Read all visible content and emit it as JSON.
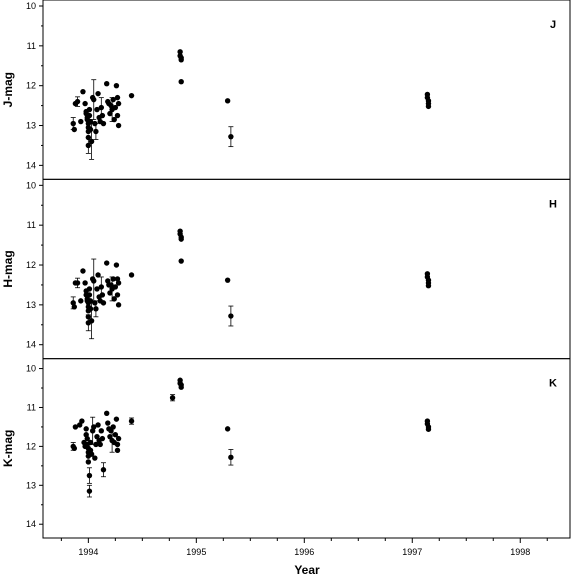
{
  "chart_data": {
    "type": "scatter",
    "xlabel": "Year",
    "x_ticks": [
      "1994",
      "1995",
      "1996",
      "1997",
      "1998"
    ],
    "xlim": [
      1993.58,
      1998.47
    ],
    "panels": [
      {
        "name": "J",
        "ylabel": "J-mag",
        "tag": "J",
        "ylim": [
          10,
          14.2
        ],
        "inverted": true,
        "y_ticks": [
          "10",
          "11",
          "12",
          "13",
          "14"
        ],
        "points": [
          [
            1993.86,
            12.95
          ],
          [
            1993.87,
            13.1
          ],
          [
            1993.88,
            12.45
          ],
          [
            1993.9,
            12.4
          ],
          [
            1993.93,
            12.9
          ],
          [
            1993.95,
            12.15
          ],
          [
            1993.97,
            12.45
          ],
          [
            1993.98,
            12.65
          ],
          [
            1993.98,
            12.7
          ],
          [
            1993.99,
            12.8
          ],
          [
            1993.99,
            12.85
          ],
          [
            1994.0,
            12.95
          ],
          [
            1994.0,
            13.05
          ],
          [
            1994.0,
            13.15
          ],
          [
            1994.0,
            13.3
          ],
          [
            1994.0,
            13.5
          ],
          [
            1994.01,
            12.6
          ],
          [
            1994.01,
            12.75
          ],
          [
            1994.02,
            12.9
          ],
          [
            1994.02,
            13.1
          ],
          [
            1994.03,
            13.4
          ],
          [
            1994.04,
            12.3
          ],
          [
            1994.05,
            12.35
          ],
          [
            1994.06,
            12.95
          ],
          [
            1994.07,
            13.15
          ],
          [
            1994.08,
            12.6
          ],
          [
            1994.09,
            12.2
          ],
          [
            1994.1,
            12.8
          ],
          [
            1994.11,
            12.9
          ],
          [
            1994.12,
            12.55
          ],
          [
            1994.13,
            12.75
          ],
          [
            1994.14,
            12.95
          ],
          [
            1994.17,
            11.95
          ],
          [
            1994.18,
            12.4
          ],
          [
            1994.19,
            12.45
          ],
          [
            1994.2,
            12.7
          ],
          [
            1994.21,
            12.5
          ],
          [
            1994.22,
            12.6
          ],
          [
            1994.23,
            12.35
          ],
          [
            1994.24,
            12.85
          ],
          [
            1994.25,
            12.55
          ],
          [
            1994.26,
            12.0
          ],
          [
            1994.27,
            12.3
          ],
          [
            1994.27,
            12.75
          ],
          [
            1994.28,
            13.0
          ],
          [
            1994.28,
            12.45
          ],
          [
            1994.4,
            12.25
          ],
          [
            1994.85,
            11.15
          ],
          [
            1994.85,
            11.25
          ],
          [
            1994.86,
            11.3
          ],
          [
            1994.86,
            11.35
          ],
          [
            1994.86,
            11.9
          ],
          [
            1995.29,
            12.38
          ],
          [
            1995.32,
            13.28
          ],
          [
            1997.14,
            12.22
          ],
          [
            1997.14,
            12.3
          ],
          [
            1997.15,
            12.38
          ],
          [
            1997.15,
            12.45
          ],
          [
            1997.15,
            12.52
          ]
        ],
        "errorbars": [
          [
            1993.86,
            12.95,
            0.15
          ],
          [
            1993.9,
            12.4,
            0.12
          ],
          [
            1994.0,
            13.5,
            0.2
          ],
          [
            1994.03,
            13.4,
            0.45
          ],
          [
            1994.05,
            12.35,
            0.5
          ],
          [
            1994.07,
            13.15,
            0.2
          ],
          [
            1994.12,
            12.55,
            0.25
          ],
          [
            1994.22,
            12.6,
            0.3
          ],
          [
            1995.32,
            13.28,
            0.25
          ]
        ]
      },
      {
        "name": "H",
        "ylabel": "H-mag",
        "tag": "H",
        "ylim": [
          10,
          14.2
        ],
        "inverted": true,
        "y_ticks": [
          "10",
          "11",
          "12",
          "13",
          "14"
        ],
        "points": [
          [
            1993.86,
            12.95
          ],
          [
            1993.87,
            13.05
          ],
          [
            1993.88,
            12.45
          ],
          [
            1993.9,
            12.45
          ],
          [
            1993.93,
            12.9
          ],
          [
            1993.95,
            12.15
          ],
          [
            1993.97,
            12.45
          ],
          [
            1993.98,
            12.65
          ],
          [
            1993.98,
            12.75
          ],
          [
            1993.99,
            12.85
          ],
          [
            1993.99,
            12.9
          ],
          [
            1994.0,
            12.95
          ],
          [
            1994.0,
            13.05
          ],
          [
            1994.0,
            13.15
          ],
          [
            1994.0,
            13.3
          ],
          [
            1994.0,
            13.45
          ],
          [
            1994.01,
            12.6
          ],
          [
            1994.01,
            12.75
          ],
          [
            1994.02,
            12.9
          ],
          [
            1994.02,
            13.1
          ],
          [
            1994.03,
            13.4
          ],
          [
            1994.04,
            12.35
          ],
          [
            1994.05,
            12.4
          ],
          [
            1994.06,
            12.95
          ],
          [
            1994.07,
            13.1
          ],
          [
            1994.08,
            12.6
          ],
          [
            1994.09,
            12.25
          ],
          [
            1994.1,
            12.8
          ],
          [
            1994.11,
            12.9
          ],
          [
            1994.12,
            12.55
          ],
          [
            1994.13,
            12.75
          ],
          [
            1994.14,
            12.95
          ],
          [
            1994.17,
            11.95
          ],
          [
            1994.18,
            12.4
          ],
          [
            1994.19,
            12.5
          ],
          [
            1994.2,
            12.7
          ],
          [
            1994.21,
            12.5
          ],
          [
            1994.22,
            12.6
          ],
          [
            1994.23,
            12.35
          ],
          [
            1994.24,
            12.85
          ],
          [
            1994.25,
            12.55
          ],
          [
            1994.26,
            12.0
          ],
          [
            1994.27,
            12.35
          ],
          [
            1994.27,
            12.75
          ],
          [
            1994.28,
            13.0
          ],
          [
            1994.28,
            12.45
          ],
          [
            1994.4,
            12.25
          ],
          [
            1994.85,
            11.15
          ],
          [
            1994.85,
            11.22
          ],
          [
            1994.86,
            11.3
          ],
          [
            1994.86,
            11.35
          ],
          [
            1994.86,
            11.9
          ],
          [
            1995.29,
            12.38
          ],
          [
            1995.32,
            13.28
          ],
          [
            1997.14,
            12.22
          ],
          [
            1997.14,
            12.3
          ],
          [
            1997.15,
            12.38
          ],
          [
            1997.15,
            12.45
          ],
          [
            1997.15,
            12.52
          ]
        ],
        "errorbars": [
          [
            1993.86,
            12.95,
            0.15
          ],
          [
            1993.9,
            12.45,
            0.12
          ],
          [
            1994.0,
            13.45,
            0.2
          ],
          [
            1994.03,
            13.4,
            0.45
          ],
          [
            1994.05,
            12.4,
            0.55
          ],
          [
            1994.07,
            13.1,
            0.2
          ],
          [
            1994.12,
            12.55,
            0.25
          ],
          [
            1994.22,
            12.6,
            0.3
          ],
          [
            1995.32,
            13.28,
            0.25
          ]
        ]
      },
      {
        "name": "K",
        "ylabel": "K-mag",
        "tag": "K",
        "ylim": [
          9.9,
          14.2
        ],
        "inverted": true,
        "y_ticks": [
          "10",
          "11",
          "12",
          "13",
          "14"
        ],
        "points": [
          [
            1993.86,
            12.0
          ],
          [
            1993.87,
            12.05
          ],
          [
            1993.88,
            11.5
          ],
          [
            1993.92,
            11.45
          ],
          [
            1993.94,
            11.35
          ],
          [
            1993.96,
            11.9
          ],
          [
            1993.97,
            12.0
          ],
          [
            1993.98,
            11.55
          ],
          [
            1993.98,
            11.7
          ],
          [
            1993.99,
            11.8
          ],
          [
            1993.99,
            11.95
          ],
          [
            1994.0,
            12.05
          ],
          [
            1994.0,
            12.15
          ],
          [
            1994.0,
            12.25
          ],
          [
            1994.0,
            12.4
          ],
          [
            1994.01,
            12.75
          ],
          [
            1994.01,
            13.15
          ],
          [
            1994.02,
            11.9
          ],
          [
            1994.02,
            12.1
          ],
          [
            1994.03,
            12.2
          ],
          [
            1994.04,
            11.6
          ],
          [
            1994.05,
            11.5
          ],
          [
            1994.06,
            12.3
          ],
          [
            1994.07,
            11.95
          ],
          [
            1994.08,
            11.75
          ],
          [
            1994.09,
            11.45
          ],
          [
            1994.1,
            11.85
          ],
          [
            1994.11,
            11.95
          ],
          [
            1994.12,
            11.6
          ],
          [
            1994.13,
            11.8
          ],
          [
            1994.14,
            12.6
          ],
          [
            1994.17,
            11.15
          ],
          [
            1994.18,
            11.4
          ],
          [
            1994.19,
            11.55
          ],
          [
            1994.2,
            11.75
          ],
          [
            1994.21,
            11.6
          ],
          [
            1994.22,
            11.85
          ],
          [
            1994.23,
            11.5
          ],
          [
            1994.24,
            11.9
          ],
          [
            1994.25,
            11.7
          ],
          [
            1994.26,
            11.3
          ],
          [
            1994.27,
            11.95
          ],
          [
            1994.27,
            12.1
          ],
          [
            1994.28,
            11.8
          ],
          [
            1994.4,
            11.35
          ],
          [
            1994.78,
            10.75
          ],
          [
            1994.85,
            10.3
          ],
          [
            1994.85,
            10.38
          ],
          [
            1994.86,
            10.42
          ],
          [
            1994.86,
            10.48
          ],
          [
            1995.29,
            11.55
          ],
          [
            1995.32,
            12.28
          ],
          [
            1997.14,
            11.35
          ],
          [
            1997.14,
            11.42
          ],
          [
            1997.15,
            11.5
          ],
          [
            1997.15,
            11.56
          ]
        ],
        "errorbars": [
          [
            1993.86,
            12.0,
            0.1
          ],
          [
            1994.01,
            13.15,
            0.15
          ],
          [
            1994.01,
            12.75,
            0.2
          ],
          [
            1994.04,
            11.6,
            0.35
          ],
          [
            1994.14,
            12.6,
            0.18
          ],
          [
            1994.22,
            11.85,
            0.3
          ],
          [
            1994.4,
            11.35,
            0.08
          ],
          [
            1994.78,
            10.75,
            0.08
          ],
          [
            1995.32,
            12.28,
            0.2
          ]
        ]
      }
    ]
  }
}
